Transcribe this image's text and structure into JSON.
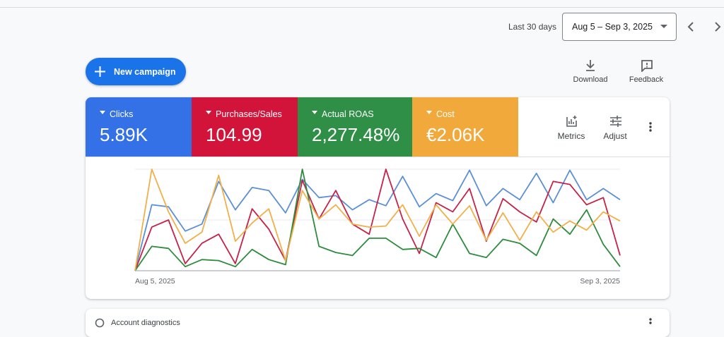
{
  "toolbar": {
    "range_label": "Last 30 days",
    "date_range": "Aug 5 – Sep 3, 2025"
  },
  "actions": {
    "new_campaign": "New campaign",
    "download": "Download",
    "feedback": "Feedback",
    "metrics": "Metrics",
    "adjust": "Adjust"
  },
  "next_card": {
    "title": "Account diagnostics"
  },
  "chart_data": {
    "type": "line",
    "categories": [
      "Aug 5, 2025",
      null,
      null,
      null,
      null,
      null,
      null,
      null,
      null,
      null,
      null,
      null,
      null,
      null,
      null,
      null,
      null,
      null,
      null,
      null,
      null,
      null,
      null,
      null,
      null,
      null,
      null,
      null,
      null,
      "Sep 3, 2025"
    ],
    "ylim": [
      0,
      100
    ],
    "series": [
      {
        "name": "Clicks",
        "total": "5.89K",
        "color": "#3470e6",
        "line_color": "#5b8fd6",
        "values": [
          0,
          65,
          63,
          39,
          46,
          88,
          60,
          82,
          79,
          57,
          90,
          72,
          74,
          60,
          70,
          64,
          93,
          63,
          76,
          69,
          99,
          64,
          81,
          70,
          96,
          67,
          99,
          70,
          81,
          70
        ]
      },
      {
        "name": "Purchases/Sales",
        "total": "104.99",
        "color": "#d2143a",
        "line_color": "#c5224a",
        "values": [
          0,
          43,
          50,
          7,
          27,
          36,
          7,
          61,
          41,
          10,
          89,
          51,
          79,
          46,
          36,
          100,
          51,
          17,
          67,
          58,
          81,
          29,
          71,
          58,
          48,
          88,
          85,
          65,
          72,
          15
        ]
      },
      {
        "name": "Actual ROAS",
        "total": "2,277.48%",
        "color": "#2f8f47",
        "line_color": "#2e8c3e",
        "values": [
          0,
          24,
          22,
          4,
          11,
          10,
          4,
          21,
          11,
          6,
          100,
          24,
          18,
          15,
          32,
          32,
          21,
          22,
          13,
          46,
          17,
          13,
          31,
          27,
          15,
          51,
          36,
          60,
          26,
          4
        ]
      },
      {
        "name": "Cost",
        "total": "€2.06K",
        "color": "#f2a93b",
        "line_color": "#f0b04a",
        "values": [
          0,
          100,
          58,
          27,
          38,
          94,
          29,
          47,
          61,
          10,
          79,
          51,
          65,
          46,
          43,
          44,
          65,
          34,
          65,
          46,
          64,
          30,
          57,
          30,
          58,
          38,
          49,
          40,
          58,
          49
        ]
      }
    ]
  }
}
